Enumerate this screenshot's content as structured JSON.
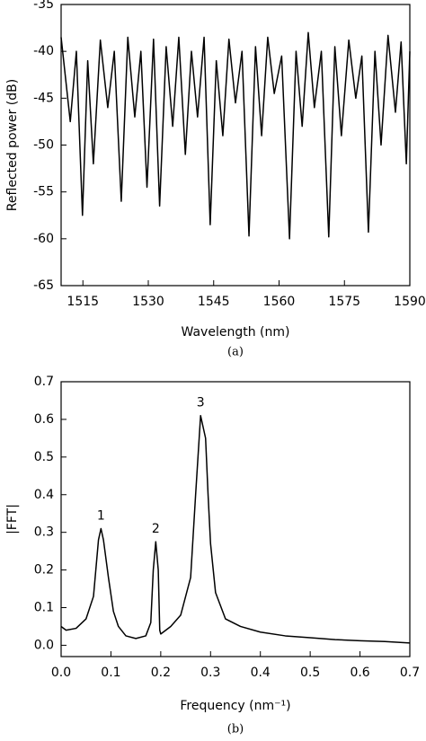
{
  "chart_data": [
    {
      "type": "line",
      "xlabel": "Wavelength (nm)",
      "ylabel": "Reflected power (dB)",
      "caption": "(a)",
      "xlim": [
        1510,
        1590
      ],
      "ylim": [
        -65,
        -35
      ],
      "xticks": [
        1515,
        1530,
        1545,
        1560,
        1575,
        1590
      ],
      "yticks": [
        -65,
        -60,
        -55,
        -50,
        -45,
        -40,
        -35
      ],
      "x": [
        1510,
        1512.1,
        1513.5,
        1514.9,
        1516.1,
        1517.4,
        1519.0,
        1520.7,
        1522.2,
        1523.8,
        1525.3,
        1526.9,
        1528.3,
        1529.7,
        1531.2,
        1532.6,
        1534.1,
        1535.6,
        1537.0,
        1538.5,
        1539.9,
        1541.3,
        1542.8,
        1544.2,
        1545.6,
        1547.1,
        1548.5,
        1550.0,
        1551.5,
        1553.1,
        1554.6,
        1556.0,
        1557.4,
        1558.9,
        1560.6,
        1562.4,
        1563.9,
        1565.3,
        1566.7,
        1568.1,
        1569.7,
        1571.4,
        1572.8,
        1574.3,
        1576.0,
        1577.6,
        1579.0,
        1580.5,
        1582.0,
        1583.4,
        1585.0,
        1586.7,
        1588.0,
        1589.2,
        1590
      ],
      "series": [
        {
          "color": "#000000",
          "values": [
            -38.5,
            -47.5,
            -40,
            -57.5,
            -41,
            -52,
            -38.8,
            -46,
            -40,
            -56,
            -38.5,
            -47,
            -40,
            -54.5,
            -38.7,
            -56.5,
            -39.5,
            -48,
            -38.5,
            -51,
            -40,
            -47,
            -38.5,
            -58.5,
            -41,
            -49,
            -38.7,
            -45.5,
            -40,
            -59.7,
            -39.5,
            -49,
            -38.5,
            -44.5,
            -40.5,
            -60,
            -40,
            -48,
            -38,
            -46,
            -40,
            -59.8,
            -39.5,
            -49,
            -38.8,
            -45,
            -40.5,
            -59.3,
            -40,
            -50,
            -38.3,
            -46.5,
            -39,
            -52,
            -40
          ]
        }
      ]
    },
    {
      "type": "line",
      "xlabel": "Frequency (nm⁻¹)",
      "ylabel": "|FFT|",
      "caption": "(b)",
      "xlim": [
        0,
        0.7
      ],
      "ylim": [
        -0.03,
        0.7
      ],
      "xticks": [
        {
          "value": 0,
          "label": "0.0"
        },
        0.1,
        0.2,
        0.3,
        0.4,
        0.5,
        0.6,
        0.7
      ],
      "yticks": [
        {
          "value": 0,
          "label": "0.0"
        },
        0.1,
        0.2,
        0.3,
        0.4,
        0.5,
        0.6,
        0.7
      ],
      "x": [
        0,
        0.01,
        0.03,
        0.05,
        0.065,
        0.075,
        0.08,
        0.085,
        0.095,
        0.105,
        0.115,
        0.13,
        0.15,
        0.17,
        0.18,
        0.185,
        0.19,
        0.195,
        0.198,
        0.2,
        0.22,
        0.24,
        0.26,
        0.27,
        0.28,
        0.29,
        0.295,
        0.3,
        0.31,
        0.33,
        0.36,
        0.4,
        0.45,
        0.5,
        0.55,
        0.6,
        0.65,
        0.7
      ],
      "series": [
        {
          "color": "#000000",
          "values": [
            0.05,
            0.04,
            0.045,
            0.07,
            0.13,
            0.28,
            0.31,
            0.28,
            0.18,
            0.09,
            0.05,
            0.025,
            0.018,
            0.025,
            0.06,
            0.2,
            0.275,
            0.2,
            0.04,
            0.03,
            0.05,
            0.08,
            0.18,
            0.4,
            0.61,
            0.55,
            0.4,
            0.27,
            0.14,
            0.07,
            0.05,
            0.035,
            0.025,
            0.02,
            0.015,
            0.012,
            0.01,
            0.006
          ]
        }
      ],
      "annotations": [
        {
          "text": "1",
          "x": 0.08,
          "y": 0.31
        },
        {
          "text": "2",
          "x": 0.19,
          "y": 0.275
        },
        {
          "text": "3",
          "x": 0.28,
          "y": 0.61
        }
      ]
    }
  ]
}
